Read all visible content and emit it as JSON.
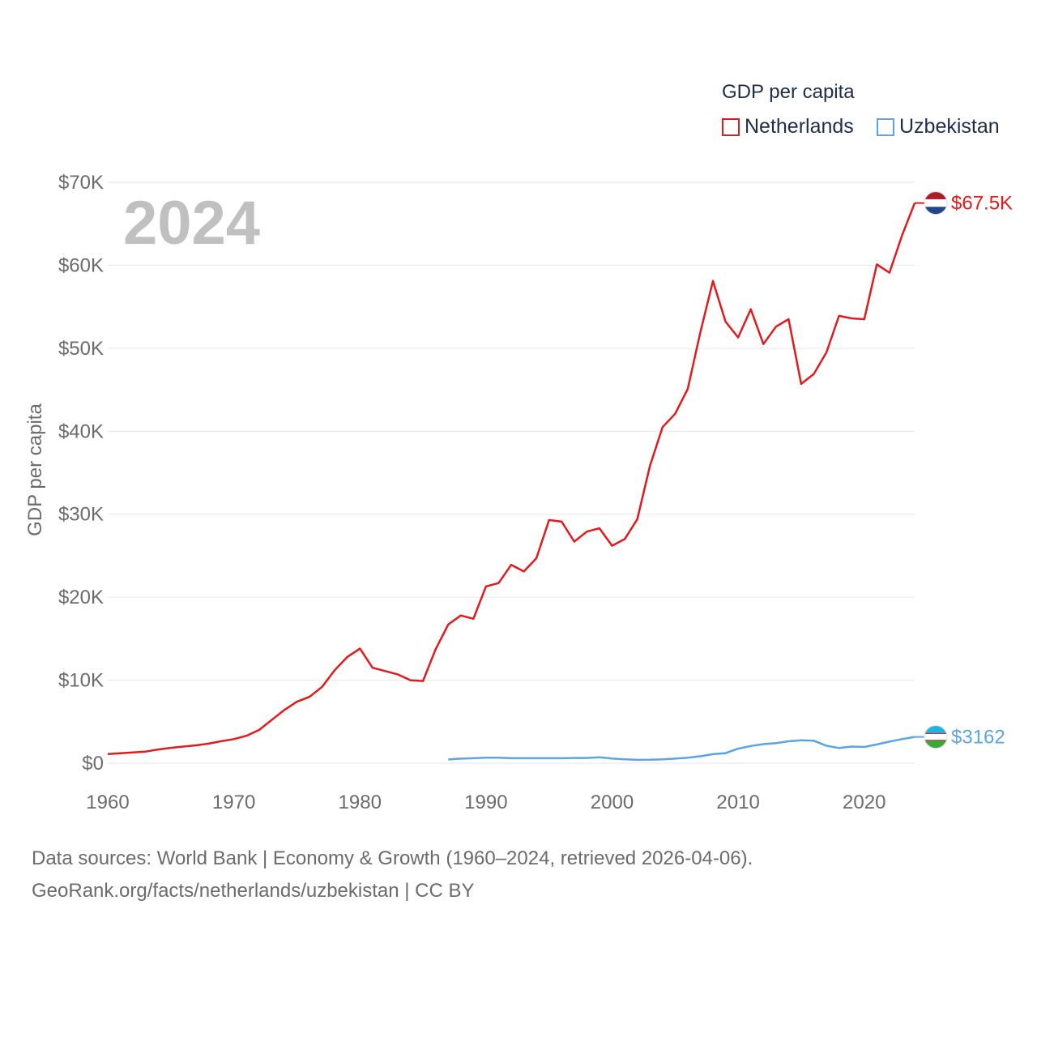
{
  "chart_data": {
    "type": "line",
    "title": "GDP per capita",
    "ylabel": "GDP per capita",
    "xlabel": "",
    "year_label": "2024",
    "xlim": [
      1960,
      2024
    ],
    "ylim": [
      0,
      70000
    ],
    "x_ticks": [
      1960,
      1970,
      1980,
      1990,
      2000,
      2010,
      2020
    ],
    "x_tick_labels": [
      "1960",
      "1970",
      "1980",
      "1990",
      "2000",
      "2010",
      "2020"
    ],
    "y_ticks": [
      0,
      10000,
      20000,
      30000,
      40000,
      50000,
      60000,
      70000
    ],
    "y_tick_labels": [
      "$0",
      "$10K",
      "$20K",
      "$30K",
      "$40K",
      "$50K",
      "$60K",
      "$70K"
    ],
    "grid": true,
    "legend_position": "top-right",
    "series": [
      {
        "name": "Netherlands",
        "color": "#e31a1c",
        "end_label": "$67.5K",
        "flag": "netherlands-flag",
        "x": [
          1960,
          1961,
          1962,
          1963,
          1964,
          1965,
          1966,
          1967,
          1968,
          1969,
          1970,
          1971,
          1972,
          1973,
          1974,
          1975,
          1976,
          1977,
          1978,
          1979,
          1980,
          1981,
          1982,
          1983,
          1984,
          1985,
          1986,
          1987,
          1988,
          1989,
          1990,
          1991,
          1992,
          1993,
          1994,
          1995,
          1996,
          1997,
          1998,
          1999,
          2000,
          2001,
          2002,
          2003,
          2004,
          2005,
          2006,
          2007,
          2008,
          2009,
          2010,
          2011,
          2012,
          2013,
          2014,
          2015,
          2016,
          2017,
          2018,
          2019,
          2020,
          2021,
          2022,
          2023,
          2024
        ],
        "values": [
          1100,
          1200,
          1300,
          1400,
          1650,
          1850,
          2000,
          2150,
          2350,
          2650,
          2900,
          3300,
          4000,
          5200,
          6400,
          7400,
          8000,
          9200,
          11200,
          12800,
          13800,
          11500,
          11100,
          10700,
          10000,
          9900,
          13700,
          16700,
          17800,
          17400,
          21300,
          21700,
          23900,
          23100,
          24700,
          29300,
          29100,
          26700,
          27900,
          28300,
          26200,
          27000,
          29400,
          35800,
          40500,
          42100,
          45100,
          51900,
          58100,
          53200,
          51300,
          54700,
          50500,
          52600,
          53500,
          45700,
          46900,
          49500,
          53900,
          53600,
          53500,
          60100,
          59100,
          63600,
          67500
        ]
      },
      {
        "name": "Uzbekistan",
        "color": "#5ba4e5",
        "end_label": "$3162",
        "flag": "uzbekistan-flag",
        "x": [
          1987,
          1988,
          1989,
          1990,
          1991,
          1992,
          1993,
          1994,
          1995,
          1996,
          1997,
          1998,
          1999,
          2000,
          2001,
          2002,
          2003,
          2004,
          2005,
          2006,
          2007,
          2008,
          2009,
          2010,
          2011,
          2012,
          2013,
          2014,
          2015,
          2016,
          2017,
          2018,
          2019,
          2020,
          2021,
          2022,
          2023,
          2024
        ],
        "values": [
          450,
          550,
          600,
          650,
          650,
          600,
          600,
          600,
          600,
          600,
          620,
          620,
          700,
          560,
          460,
          400,
          410,
          470,
          550,
          650,
          830,
          1080,
          1210,
          1750,
          2070,
          2290,
          2420,
          2640,
          2750,
          2700,
          2100,
          1830,
          2000,
          1950,
          2260,
          2600,
          2900,
          3162
        ]
      }
    ]
  },
  "legend": {
    "title": "GDP per capita",
    "items": [
      "Netherlands",
      "Uzbekistan"
    ]
  },
  "footer": {
    "line1": "Data sources: World Bank | Economy & Growth (1960–2024, retrieved 2026-04-06).",
    "line2": "GeoRank.org/facts/netherlands/uzbekistan | CC BY"
  },
  "colors": {
    "grid": "#e6e6e6",
    "axis_text": "#6b6b6b",
    "year_label": "#c0c0c0",
    "legend_text": "#1f2d4a"
  }
}
